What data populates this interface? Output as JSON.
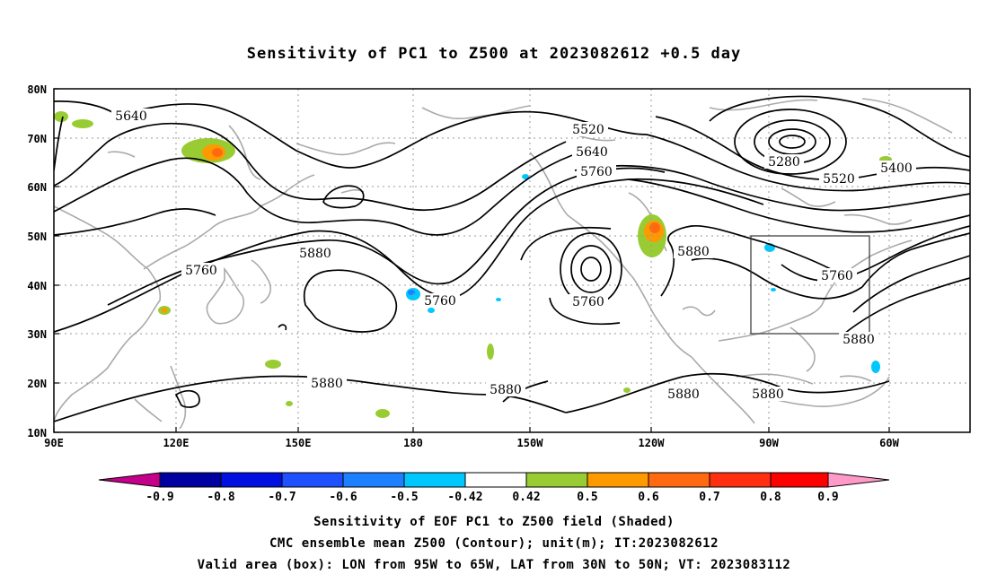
{
  "title": "Sensitivity of PC1 to Z500 at 2023082612 +0.5 day",
  "axes": {
    "lat_ticks": [
      "80N",
      "70N",
      "60N",
      "50N",
      "40N",
      "30N",
      "20N",
      "10N"
    ],
    "lon_ticks": [
      "90E",
      "120E",
      "150E",
      "180",
      "150W",
      "120W",
      "90W",
      "60W"
    ]
  },
  "colorbar": {
    "labels": [
      "-0.9",
      "-0.8",
      "-0.7",
      "-0.6",
      "-0.5",
      "-0.42",
      "0.42",
      "0.5",
      "0.6",
      "0.7",
      "0.8",
      "0.9"
    ],
    "colors": [
      "#c4008a",
      "#0000a0",
      "#0010e0",
      "#1e50ff",
      "#1c80ff",
      "#00c8ff",
      "#ffffff",
      "#99cc33",
      "#ff9900",
      "#ff6a10",
      "#ff3010",
      "#ff0000",
      "#ff99c8"
    ]
  },
  "contour_labels": [
    {
      "text": "5640"
    },
    {
      "text": "5520"
    },
    {
      "text": "5640"
    },
    {
      "text": "5760"
    },
    {
      "text": "5280"
    },
    {
      "text": "5400"
    },
    {
      "text": "5520"
    },
    {
      "text": "5760"
    },
    {
      "text": "5880"
    },
    {
      "text": "5880"
    },
    {
      "text": "5760"
    },
    {
      "text": "5760"
    },
    {
      "text": "5760"
    },
    {
      "text": "5880"
    },
    {
      "text": "5880"
    },
    {
      "text": "5880"
    },
    {
      "text": "5880"
    },
    {
      "text": "5880"
    }
  ],
  "valid_box": {
    "lon_west": "95W",
    "lon_east": "65W",
    "lat_south": "30N",
    "lat_north": "50N"
  },
  "footer": {
    "line1": "Sensitivity of EOF PC1 to Z500 field (Shaded)",
    "line2": "CMC ensemble mean Z500 (Contour); unit(m); IT:2023082612",
    "line3": "Valid area (box): LON from 95W to 65W, LAT from 30N to 50N; VT: 2023083112"
  }
}
